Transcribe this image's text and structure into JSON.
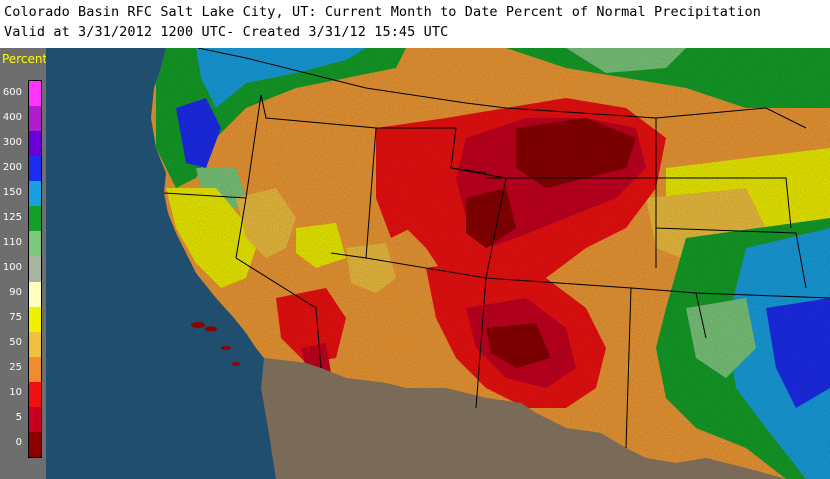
{
  "header": {
    "title_line1": "Colorado Basin RFC Salt Lake City, UT: Current Month to Date Percent of Normal Precipitation",
    "title_line2": "Valid at 3/31/2012 1200 UTC- Created 3/31/12 15:45 UTC"
  },
  "legend": {
    "title": "Percent",
    "levels": [
      {
        "label": "600",
        "color": "#ff33ff"
      },
      {
        "label": "400",
        "color": "#b01ccc"
      },
      {
        "label": "300",
        "color": "#6a00d8"
      },
      {
        "label": "200",
        "color": "#1c2cf0"
      },
      {
        "label": "150",
        "color": "#18a0e0"
      },
      {
        "label": "125",
        "color": "#14a028"
      },
      {
        "label": "110",
        "color": "#7cc87c"
      },
      {
        "label": "100",
        "color": "#a8b4a0"
      },
      {
        "label": "90",
        "color": "#ffffc0"
      },
      {
        "label": "75",
        "color": "#f0f000"
      },
      {
        "label": "50",
        "color": "#f0c040"
      },
      {
        "label": "25",
        "color": "#f08c30"
      },
      {
        "label": "10",
        "color": "#f01010"
      },
      {
        "label": "5",
        "color": "#c80020"
      },
      {
        "label": "0",
        "color": "#8c0000"
      }
    ]
  },
  "colors": {
    "ocean": "#1f4e6f",
    "mexico_land": "#7a6a58",
    "state_boundary": "#000000"
  }
}
